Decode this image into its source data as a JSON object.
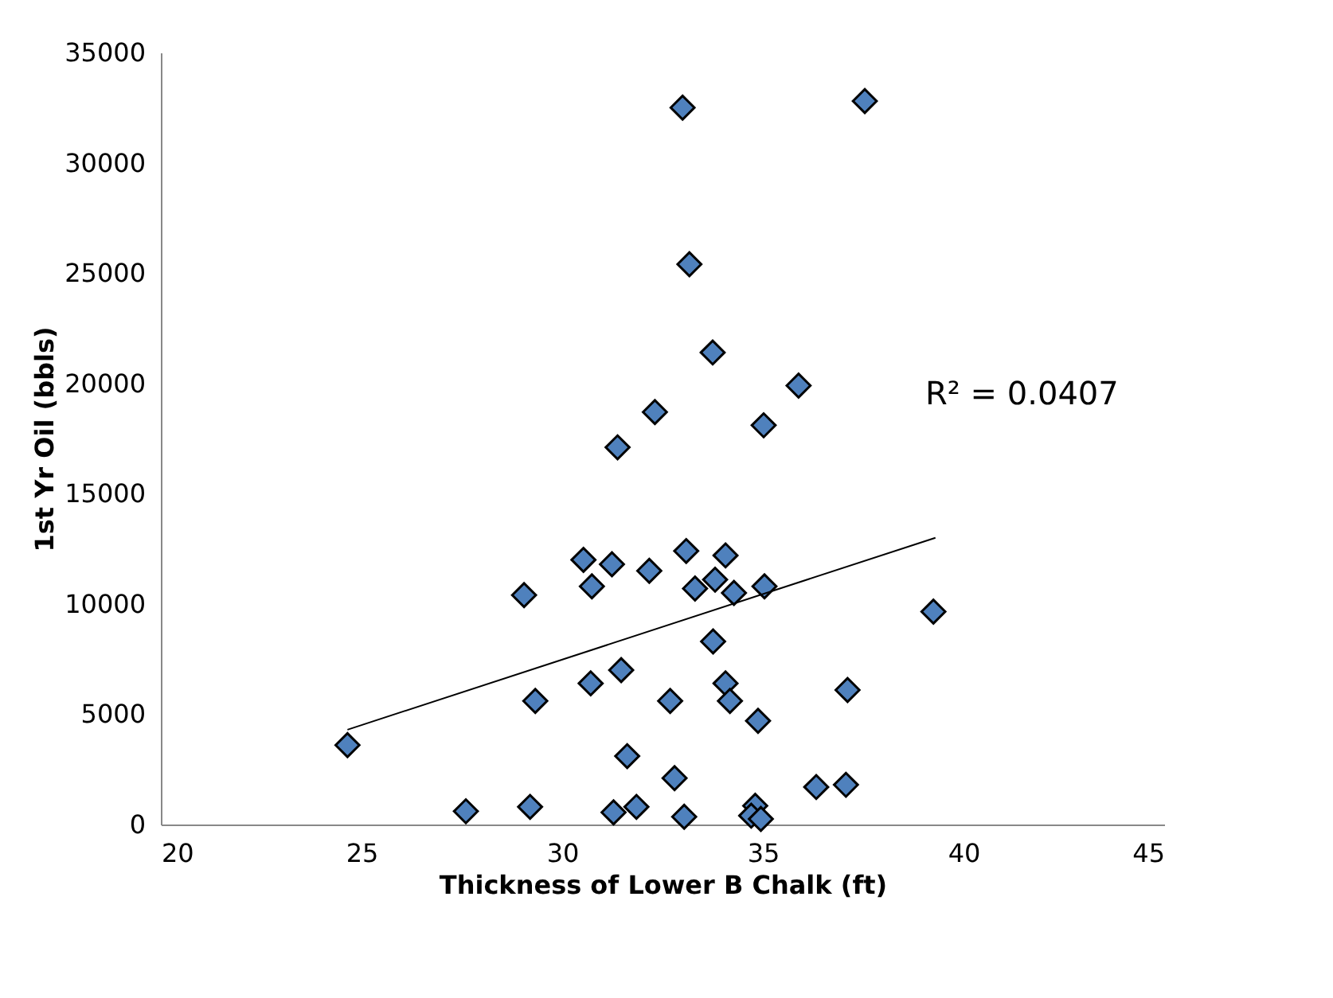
{
  "chart_data": {
    "type": "scatter",
    "xlabel": "Thickness of Lower B Chalk (ft)",
    "ylabel": "1st Yr Oil (bbls)",
    "xlim": [
      20,
      45
    ],
    "xticks": [
      20,
      25,
      30,
      35,
      40,
      45
    ],
    "ylim": [
      0,
      35000
    ],
    "yticks": [
      0,
      5000,
      10000,
      15000,
      20000,
      25000,
      30000,
      35000
    ],
    "grid": false,
    "annotations": [
      "R² = 0.0407"
    ],
    "series": [
      {
        "color": "#4f81bd",
        "marker": "diamond",
        "x": [
          24.65,
          27.6,
          29.2,
          29.05,
          29.33,
          30.53,
          30.74,
          30.71,
          31.24,
          31.47,
          31.28,
          31.62,
          31.85,
          32.17,
          32.69,
          32.8,
          33.04,
          33.09,
          33.31,
          33.81,
          33.76,
          34.07,
          34.28,
          34.07,
          34.18,
          34.88,
          35.04,
          34.81,
          34.71,
          34.95,
          36.33,
          37.07,
          37.11,
          39.25,
          33.0,
          37.54,
          33.17,
          33.75,
          35.89,
          32.31,
          35.02,
          31.38
        ],
        "values": [
          3600,
          600,
          800,
          10400,
          5600,
          12000,
          10800,
          6400,
          11800,
          7000,
          550,
          3100,
          800,
          11500,
          5600,
          2100,
          350,
          12400,
          10700,
          11100,
          8300,
          12200,
          10500,
          6400,
          5600,
          4700,
          10800,
          850,
          400,
          250,
          1700,
          1800,
          6100,
          9650,
          32500,
          32800,
          25400,
          21400,
          19900,
          18700,
          18100,
          17100
        ]
      },
      {
        "type": "line",
        "color": "#000000",
        "marker": "none",
        "line_style": "solid",
        "x": [
          24.65,
          39.3
        ],
        "values": [
          4300,
          13000
        ]
      }
    ]
  }
}
